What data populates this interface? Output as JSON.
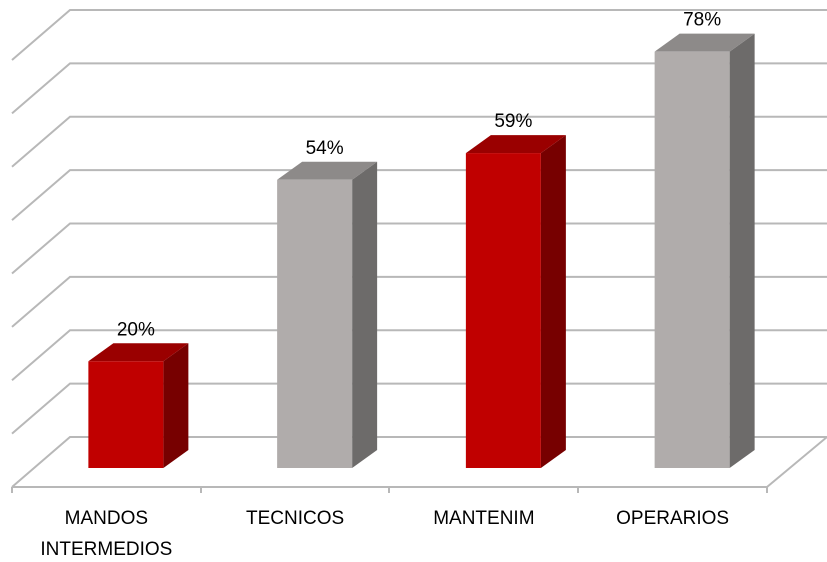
{
  "chart_data": {
    "type": "bar3d",
    "categories": [
      "MANDOS INTERMEDIOS",
      "TECNICOS",
      "MANTENIM",
      "OPERARIOS"
    ],
    "values": [
      20,
      54,
      59,
      78
    ],
    "value_labels": [
      "20%",
      "54%",
      "59%",
      "78%"
    ],
    "colors": [
      "#c00000",
      "#b0acab",
      "#c00000",
      "#b0acab"
    ],
    "ylim": [
      0,
      80
    ],
    "yticks": [
      0,
      10,
      20,
      30,
      40,
      50,
      60,
      70,
      80
    ],
    "grid": true
  }
}
